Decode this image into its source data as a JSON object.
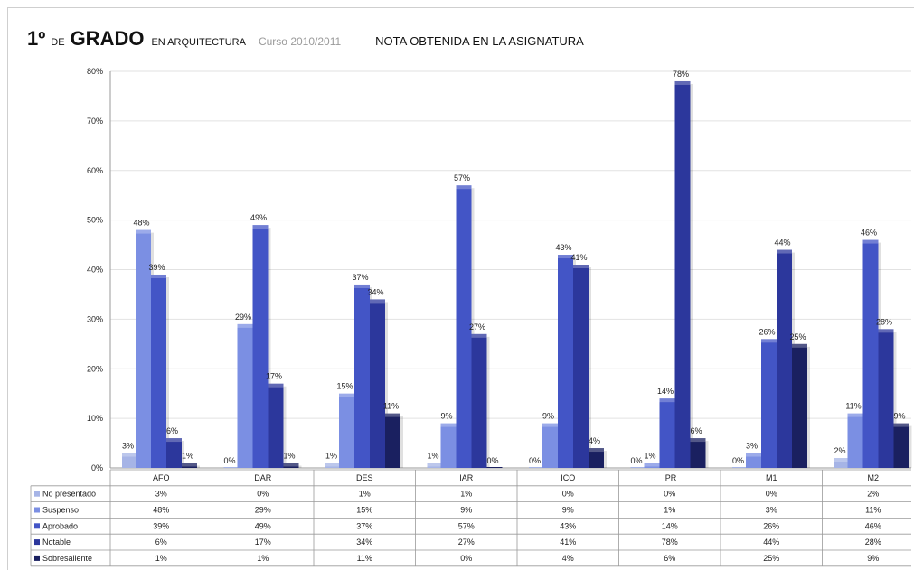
{
  "header": {
    "num": "1º",
    "de": "DE",
    "grado": "GRADO",
    "arq": "EN ARQUITECTURA",
    "curso": "Curso 2010/2011",
    "nota": "NOTA OBTENIDA EN LA ASIGNATURA"
  },
  "colors": {
    "No presentado": "#a6b4e6",
    "Suspenso": "#7b8fe3",
    "Aprobado": "#4355c6",
    "Notable": "#2c379c",
    "Sobresaliente": "#1a2060"
  },
  "chart_data": {
    "type": "bar",
    "categories": [
      "AFO",
      "DAR",
      "DES",
      "IAR",
      "ICO",
      "IPR",
      "M1",
      "M2"
    ],
    "series": [
      {
        "name": "No presentado",
        "values": [
          3,
          0,
          1,
          1,
          0,
          0,
          0,
          2
        ],
        "labels": [
          "3%",
          "0%",
          "1%",
          "1%",
          "0%",
          "0%",
          "0%",
          "2%"
        ]
      },
      {
        "name": "Suspenso",
        "values": [
          48,
          29,
          15,
          9,
          9,
          1,
          3,
          11
        ],
        "labels": [
          "48%",
          "29%",
          "15%",
          "9%",
          "9%",
          "1%",
          "3%",
          "11%"
        ]
      },
      {
        "name": "Aprobado",
        "values": [
          39,
          49,
          37,
          57,
          43,
          14,
          26,
          46
        ],
        "labels": [
          "39%",
          "49%",
          "37%",
          "57%",
          "43%",
          "14%",
          "26%",
          "46%"
        ]
      },
      {
        "name": "Notable",
        "values": [
          6,
          17,
          34,
          27,
          41,
          78,
          44,
          28
        ],
        "labels": [
          "6%",
          "17%",
          "34%",
          "27%",
          "41%",
          "78%",
          "44%",
          "28%"
        ]
      },
      {
        "name": "Sobresaliente",
        "values": [
          1,
          1,
          11,
          0,
          4,
          6,
          25,
          9
        ],
        "labels": [
          "1%",
          "1%",
          "11%",
          "0%",
          "4%",
          "6%",
          "25%",
          "9%"
        ]
      }
    ],
    "ylim": [
      0,
      80
    ],
    "yticks": [
      "0%",
      "10%",
      "20%",
      "30%",
      "40%",
      "50%",
      "60%",
      "70%",
      "80%"
    ],
    "grid": true,
    "legend": "data-table"
  }
}
